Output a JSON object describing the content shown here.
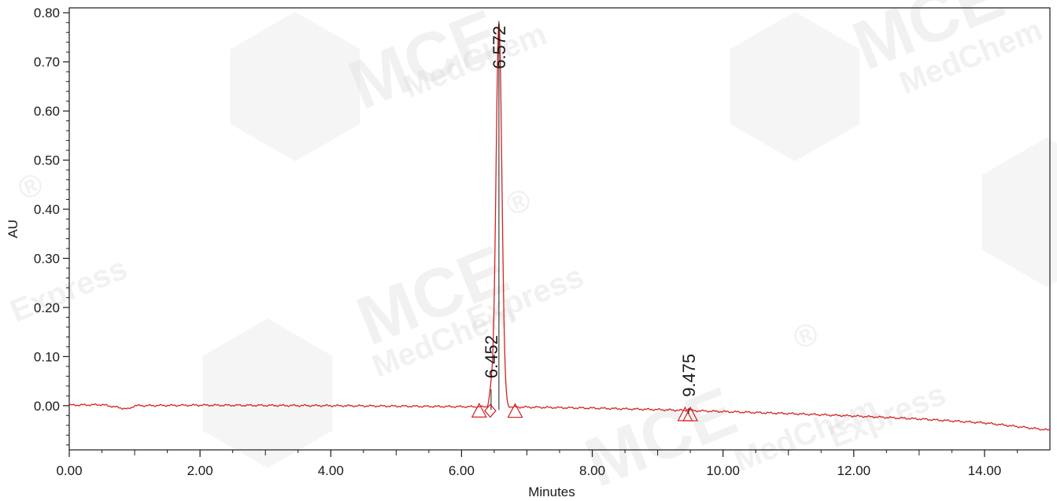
{
  "chart_data": {
    "type": "line",
    "xlabel": "Minutes",
    "ylabel": "AU",
    "xlim": [
      0,
      15
    ],
    "ylim": [
      -0.09,
      0.81
    ],
    "x_ticks": [
      "0.00",
      "2.00",
      "4.00",
      "6.00",
      "8.00",
      "10.00",
      "12.00",
      "14.00"
    ],
    "y_ticks": [
      "0.00",
      "0.10",
      "0.20",
      "0.30",
      "0.40",
      "0.50",
      "0.60",
      "0.70",
      "0.80"
    ],
    "grid": false,
    "trace_color": "#d62020",
    "peaks": [
      {
        "rt": "6.452",
        "x": 6.452,
        "height": 0.03
      },
      {
        "rt": "6.572",
        "x": 6.572,
        "height": 0.78
      },
      {
        "rt": "9.475",
        "x": 9.475,
        "height": -0.008
      }
    ],
    "baseline": [
      {
        "x": 0.0,
        "y": 0.001
      },
      {
        "x": 0.5,
        "y": 0.002
      },
      {
        "x": 0.9,
        "y": -0.007
      },
      {
        "x": 1.0,
        "y": 0.0
      },
      {
        "x": 2.0,
        "y": 0.001
      },
      {
        "x": 4.0,
        "y": 0.0
      },
      {
        "x": 6.0,
        "y": -0.002
      },
      {
        "x": 7.0,
        "y": -0.003
      },
      {
        "x": 8.0,
        "y": -0.005
      },
      {
        "x": 9.0,
        "y": -0.008
      },
      {
        "x": 10.0,
        "y": -0.012
      },
      {
        "x": 11.0,
        "y": -0.016
      },
      {
        "x": 12.0,
        "y": -0.021
      },
      {
        "x": 13.0,
        "y": -0.027
      },
      {
        "x": 14.0,
        "y": -0.035
      },
      {
        "x": 15.0,
        "y": -0.05
      }
    ],
    "markers": [
      {
        "shape": "triangle",
        "x": 6.27
      },
      {
        "shape": "diamond",
        "x": 6.44
      },
      {
        "shape": "triangle",
        "x": 6.82
      },
      {
        "shape": "triangle",
        "x": 9.42
      },
      {
        "shape": "triangle",
        "x": 9.5
      }
    ]
  },
  "watermark": {
    "brand": "MCE",
    "text1": "MedChem",
    "text2": "Express",
    "reg": "®"
  }
}
